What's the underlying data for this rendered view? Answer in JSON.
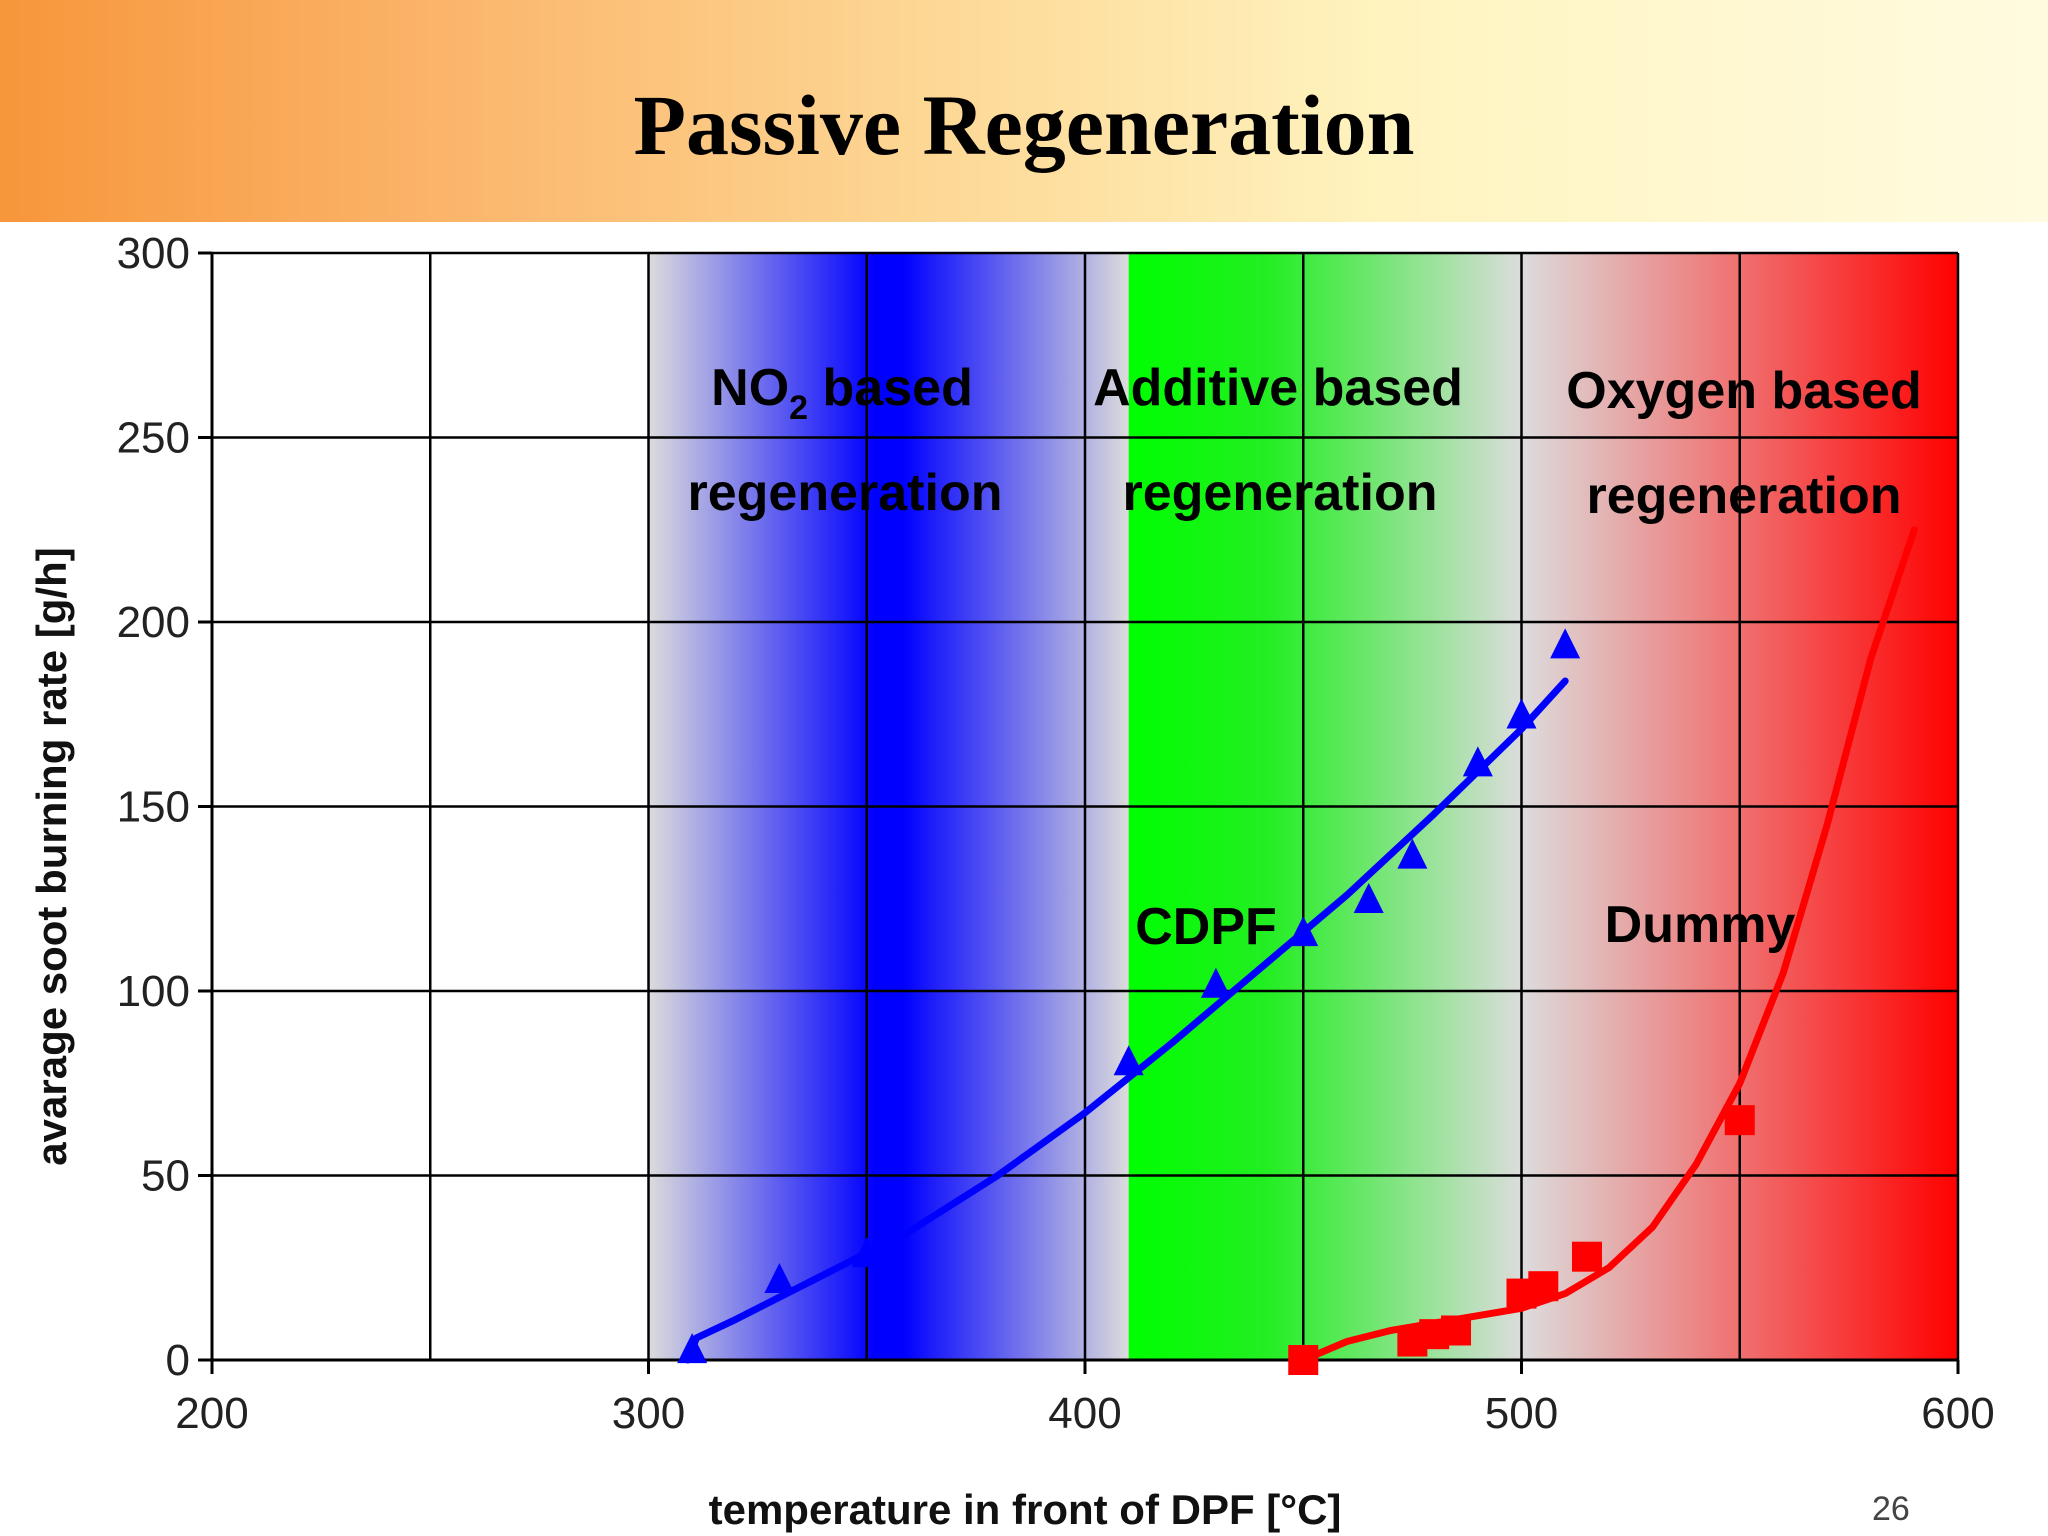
{
  "slide": {
    "title": "Passive Regeneration",
    "page_number": "26"
  },
  "colors": {
    "no2_zone": "#0000ff",
    "additive_zone": "#00ff00",
    "oxygen_zone": "#ff0000",
    "zone_base": "#dcdcdc",
    "cdpf_series": "#0000ff",
    "dummy_series": "#ff0000"
  },
  "chart_data": {
    "type": "scatter",
    "title": "",
    "xlabel": "temperature in front of DPF [°C]",
    "ylabel": "avarage soot burning rate [g/h]",
    "xlim": [
      200,
      600
    ],
    "ylim": [
      0,
      300
    ],
    "xticks": [
      200,
      300,
      400,
      500,
      600
    ],
    "yticks": [
      0,
      50,
      100,
      150,
      200,
      250,
      300
    ],
    "x_gridlines": [
      200,
      250,
      300,
      350,
      400,
      450,
      500,
      550,
      600
    ],
    "grid": true,
    "zones": [
      {
        "label_line1": "NO",
        "label_sub": "2",
        "label_line1_rest": " based",
        "label_line2": "regeneration",
        "x_start": 300,
        "x_end": 410,
        "peak_x": 352
      },
      {
        "label_line1": "Additive based",
        "label_line2": "regeneration",
        "x_start": 410,
        "x_end": 500,
        "peak_x": 410
      },
      {
        "label_line1": "Oxygen based",
        "label_line2": "regeneration",
        "x_start": 500,
        "x_end": 600,
        "peak_x": 600
      }
    ],
    "series": [
      {
        "name": "CDPF",
        "marker": "triangle",
        "points": [
          [
            310,
            2
          ],
          [
            330,
            21
          ],
          [
            350,
            28
          ],
          [
            410,
            80
          ],
          [
            430,
            101
          ],
          [
            450,
            115
          ],
          [
            465,
            124
          ],
          [
            475,
            136
          ],
          [
            490,
            161
          ],
          [
            500,
            174
          ],
          [
            510,
            193
          ]
        ],
        "fit": [
          [
            309,
            0
          ],
          [
            311,
            6
          ],
          [
            320,
            11
          ],
          [
            340,
            23
          ],
          [
            360,
            35
          ],
          [
            380,
            50
          ],
          [
            400,
            67
          ],
          [
            420,
            86
          ],
          [
            440,
            106
          ],
          [
            460,
            126
          ],
          [
            480,
            148
          ],
          [
            500,
            171
          ],
          [
            510,
            184
          ]
        ]
      },
      {
        "name": "Dummy",
        "marker": "square",
        "points": [
          [
            450,
            0
          ],
          [
            475,
            5
          ],
          [
            480,
            7
          ],
          [
            485,
            8
          ],
          [
            500,
            18
          ],
          [
            505,
            20
          ],
          [
            515,
            28
          ],
          [
            550,
            65
          ]
        ],
        "fit": [
          [
            450,
            0
          ],
          [
            460,
            5
          ],
          [
            470,
            8
          ],
          [
            480,
            10
          ],
          [
            490,
            12
          ],
          [
            500,
            14
          ],
          [
            510,
            18
          ],
          [
            520,
            25
          ],
          [
            530,
            36
          ],
          [
            540,
            53
          ],
          [
            550,
            75
          ],
          [
            560,
            105
          ],
          [
            570,
            145
          ],
          [
            580,
            190
          ],
          [
            590,
            225
          ]
        ]
      }
    ]
  }
}
